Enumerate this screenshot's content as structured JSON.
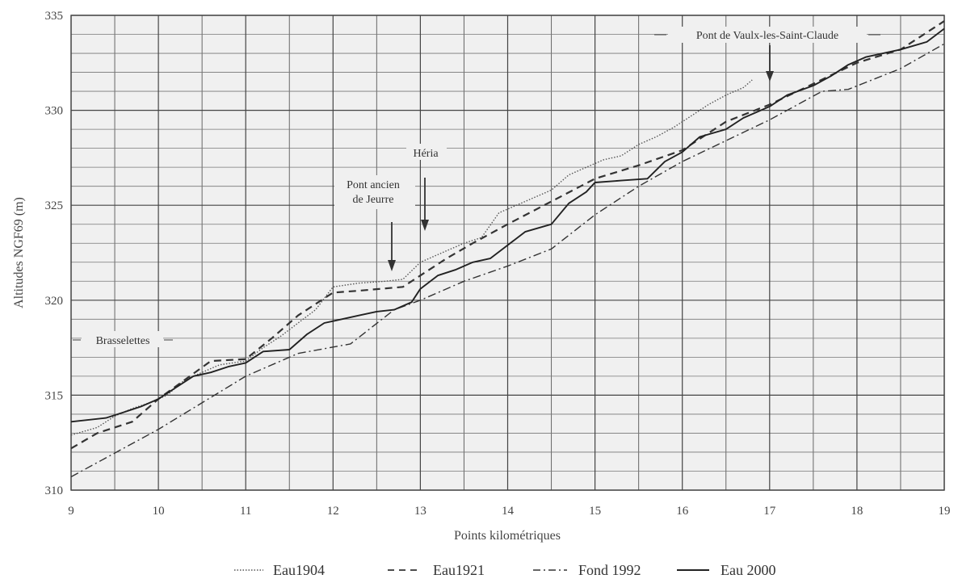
{
  "chart_data": {
    "type": "line",
    "title": "",
    "xlabel": "Points kilométriques",
    "ylabel": "Altitudes NGF69 (m)",
    "xlim": [
      9,
      19
    ],
    "ylim": [
      310,
      335
    ],
    "x_ticks": [
      9,
      10,
      11,
      12,
      13,
      14,
      15,
      16,
      17,
      18,
      19
    ],
    "y_ticks": [
      310,
      315,
      320,
      325,
      330,
      335
    ],
    "grid": true,
    "legend_position": "bottom",
    "series": [
      {
        "name": "Eau1904",
        "style": "dotted",
        "x": [
          9,
          9.3,
          9.5,
          9.7,
          9.9,
          10.1,
          10.3,
          10.5,
          10.7,
          11.0,
          11.2,
          11.4,
          11.6,
          11.8,
          12.0,
          12.3,
          12.6,
          12.8,
          13.0,
          13.3,
          13.5,
          13.7,
          13.9,
          14.1,
          14.3,
          14.5,
          14.7,
          14.9,
          15.1,
          15.3,
          15.5,
          15.7,
          15.9,
          16.1,
          16.3,
          16.5,
          16.7,
          16.8
        ],
        "y": [
          312.9,
          313.3,
          313.9,
          314.3,
          314.6,
          315.0,
          315.8,
          316.2,
          316.6,
          316.8,
          317.5,
          318.1,
          318.8,
          319.5,
          320.7,
          320.9,
          321.0,
          321.1,
          322.0,
          322.6,
          323.0,
          323.3,
          324.6,
          325.0,
          325.4,
          325.8,
          326.6,
          327.0,
          327.4,
          327.6,
          328.2,
          328.6,
          329.1,
          329.7,
          330.3,
          330.8,
          331.2,
          331.6
        ]
      },
      {
        "name": "Eau1921",
        "style": "dashed",
        "x": [
          9,
          9.3,
          9.7,
          10.0,
          10.3,
          10.6,
          11.0,
          11.3,
          11.6,
          12.0,
          12.3,
          12.8,
          13.0,
          13.3,
          13.6,
          14.0,
          14.5,
          15.0,
          15.5,
          16.0,
          16.5,
          17.0,
          17.5,
          18.0,
          18.5,
          19.0
        ],
        "y": [
          312.2,
          313.0,
          313.6,
          314.8,
          315.8,
          316.8,
          316.9,
          318.0,
          319.2,
          320.4,
          320.5,
          320.7,
          321.3,
          322.2,
          323.0,
          324.0,
          325.2,
          326.4,
          327.1,
          327.9,
          329.4,
          330.3,
          331.4,
          332.5,
          333.2,
          334.7
        ]
      },
      {
        "name": "Fond 1992",
        "style": "dashdot",
        "x": [
          9,
          10.0,
          11.0,
          11.6,
          12.2,
          12.7,
          13.0,
          13.5,
          14.0,
          14.5,
          15.0,
          15.5,
          16.0,
          16.5,
          17.0,
          17.6,
          17.9,
          18.5,
          19.0
        ],
        "y": [
          310.7,
          313.2,
          316.0,
          317.2,
          317.7,
          319.5,
          320.0,
          321.0,
          321.8,
          322.7,
          324.5,
          326.0,
          327.3,
          328.4,
          329.5,
          331.0,
          331.1,
          332.2,
          333.5
        ]
      },
      {
        "name": "Eau 2000",
        "style": "solid",
        "x": [
          9,
          9.4,
          9.6,
          9.8,
          10.0,
          10.2,
          10.4,
          10.6,
          10.8,
          11.0,
          11.2,
          11.5,
          11.7,
          11.9,
          12.0,
          12.3,
          12.5,
          12.7,
          12.9,
          13.0,
          13.2,
          13.4,
          13.6,
          13.8,
          14.0,
          14.2,
          14.5,
          14.7,
          14.9,
          15.0,
          15.3,
          15.6,
          15.8,
          16.0,
          16.2,
          16.5,
          16.7,
          17.0,
          17.2,
          17.5,
          17.7,
          17.9,
          18.1,
          18.5,
          18.8,
          19.0
        ],
        "y": [
          313.6,
          313.8,
          314.1,
          314.4,
          314.8,
          315.4,
          316.0,
          316.2,
          316.5,
          316.7,
          317.3,
          317.4,
          318.2,
          318.8,
          318.9,
          319.2,
          319.4,
          319.5,
          319.9,
          320.6,
          321.3,
          321.6,
          322.0,
          322.2,
          322.9,
          323.6,
          324.0,
          325.1,
          325.7,
          326.2,
          326.3,
          326.4,
          327.3,
          327.8,
          328.6,
          329.0,
          329.6,
          330.2,
          330.8,
          331.3,
          331.8,
          332.4,
          332.8,
          333.2,
          333.6,
          334.3
        ]
      }
    ],
    "annotations": [
      {
        "text": "Brasselettes",
        "x": 9.6,
        "y": 317.0
      },
      {
        "text": "Pont ancien",
        "x": 12.6,
        "y": 324.3
      },
      {
        "text": "de Jeurre",
        "x": 12.6,
        "y": 323.6
      },
      {
        "text": "Héria",
        "x": 13.05,
        "y": 327.6
      },
      {
        "text": "Pont de Vaulx-les-Saint-Claude",
        "x": 17.0,
        "y": 334.1
      }
    ]
  }
}
